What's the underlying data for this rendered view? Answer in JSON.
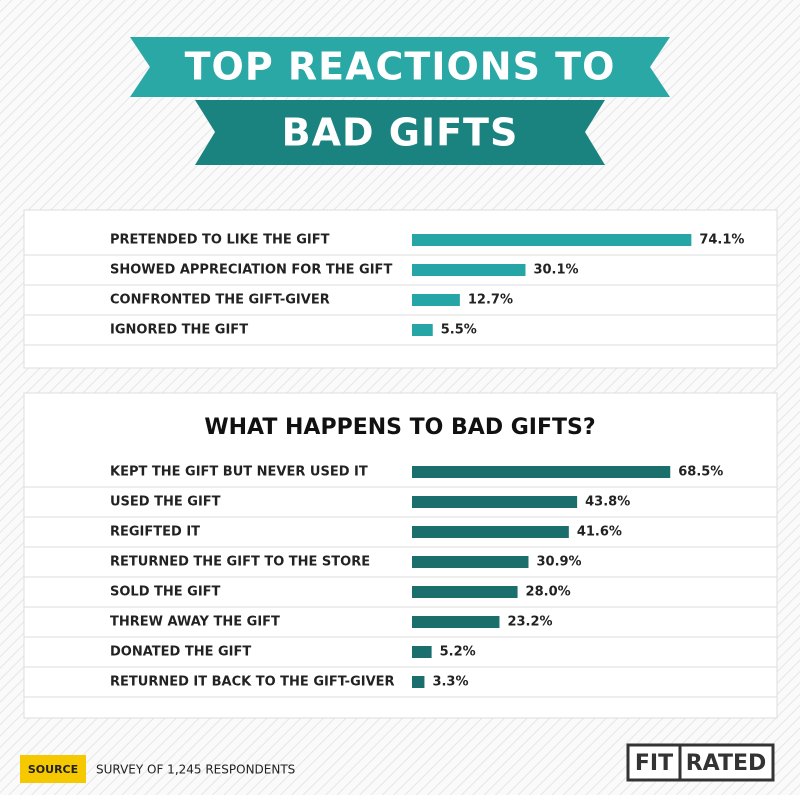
{
  "header": {
    "title_lines": [
      "TOP REACTIONS TO",
      "BAD GIFTS"
    ]
  },
  "chart_data": [
    {
      "type": "bar",
      "orientation": "horizontal",
      "color": "#25a5a6",
      "categories": [
        "PRETENDED TO LIKE THE GIFT",
        "SHOWED APPRECIATION FOR THE GIFT",
        "CONFRONTED THE GIFT-GIVER",
        "IGNORED THE GIFT"
      ],
      "values": [
        74.1,
        30.1,
        12.7,
        5.5
      ],
      "value_labels": [
        "74.1%",
        "30.1%",
        "12.7%",
        "5.5%"
      ]
    },
    {
      "type": "bar",
      "orientation": "horizontal",
      "color": "#1a6e6c",
      "title": "WHAT HAPPENS TO BAD GIFTS?",
      "categories": [
        "KEPT THE GIFT BUT NEVER USED IT",
        "USED THE GIFT",
        "REGIFTED IT",
        "RETURNED THE GIFT TO THE STORE",
        "SOLD THE GIFT",
        "THREW AWAY THE GIFT",
        "DONATED THE GIFT",
        "RETURNED IT BACK TO THE GIFT-GIVER"
      ],
      "values": [
        68.5,
        43.8,
        41.6,
        30.9,
        28.0,
        23.2,
        5.2,
        3.3
      ],
      "value_labels": [
        "68.5%",
        "43.8%",
        "41.6%",
        "30.9%",
        "28.0%",
        "23.2%",
        "5.2%",
        "3.3%"
      ]
    }
  ],
  "footer": {
    "source_label": "SOURCE",
    "source": "SURVEY OF 1,245 RESPONDENTS",
    "logo": [
      "FIT",
      "RATED"
    ]
  }
}
